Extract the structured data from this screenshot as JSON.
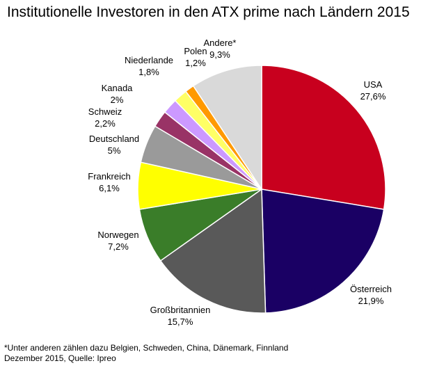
{
  "chart_data": {
    "type": "pie",
    "title": "Institutionelle Investoren in den ATX prime nach Ländern 2015",
    "slices": [
      {
        "label": "USA",
        "value_text": "27,6%",
        "value": 27.6,
        "color": "#c8001e"
      },
      {
        "label": "Österreich",
        "value_text": "21,9%",
        "value": 21.9,
        "color": "#1a0064"
      },
      {
        "label": "Großbritannien",
        "value_text": "15,7%",
        "value": 15.7,
        "color": "#595959"
      },
      {
        "label": "Norwegen",
        "value_text": "7,2%",
        "value": 7.2,
        "color": "#3a7d29"
      },
      {
        "label": "Frankreich",
        "value_text": "6,1%",
        "value": 6.1,
        "color": "#ffff00"
      },
      {
        "label": "Deutschland",
        "value_text": "5%",
        "value": 5.0,
        "color": "#9a9a9a"
      },
      {
        "label": "Schweiz",
        "value_text": "2,2%",
        "value": 2.2,
        "color": "#993366"
      },
      {
        "label": "Kanada",
        "value_text": "2%",
        "value": 2.0,
        "color": "#cc99ff"
      },
      {
        "label": "Niederlande",
        "value_text": "1,8%",
        "value": 1.8,
        "color": "#ffff66"
      },
      {
        "label": "Polen",
        "value_text": "1,2%",
        "value": 1.2,
        "color": "#ff9900"
      },
      {
        "label": "Andere*",
        "value_text": "9,3%",
        "value": 9.3,
        "color": "#d9d9d9"
      }
    ]
  },
  "footnote": {
    "line1": "*Unter anderen zählen dazu Belgien, Schweden, China, Dänemark, Finnland",
    "line2": "Dezember 2015, Quelle: Ipreo"
  }
}
